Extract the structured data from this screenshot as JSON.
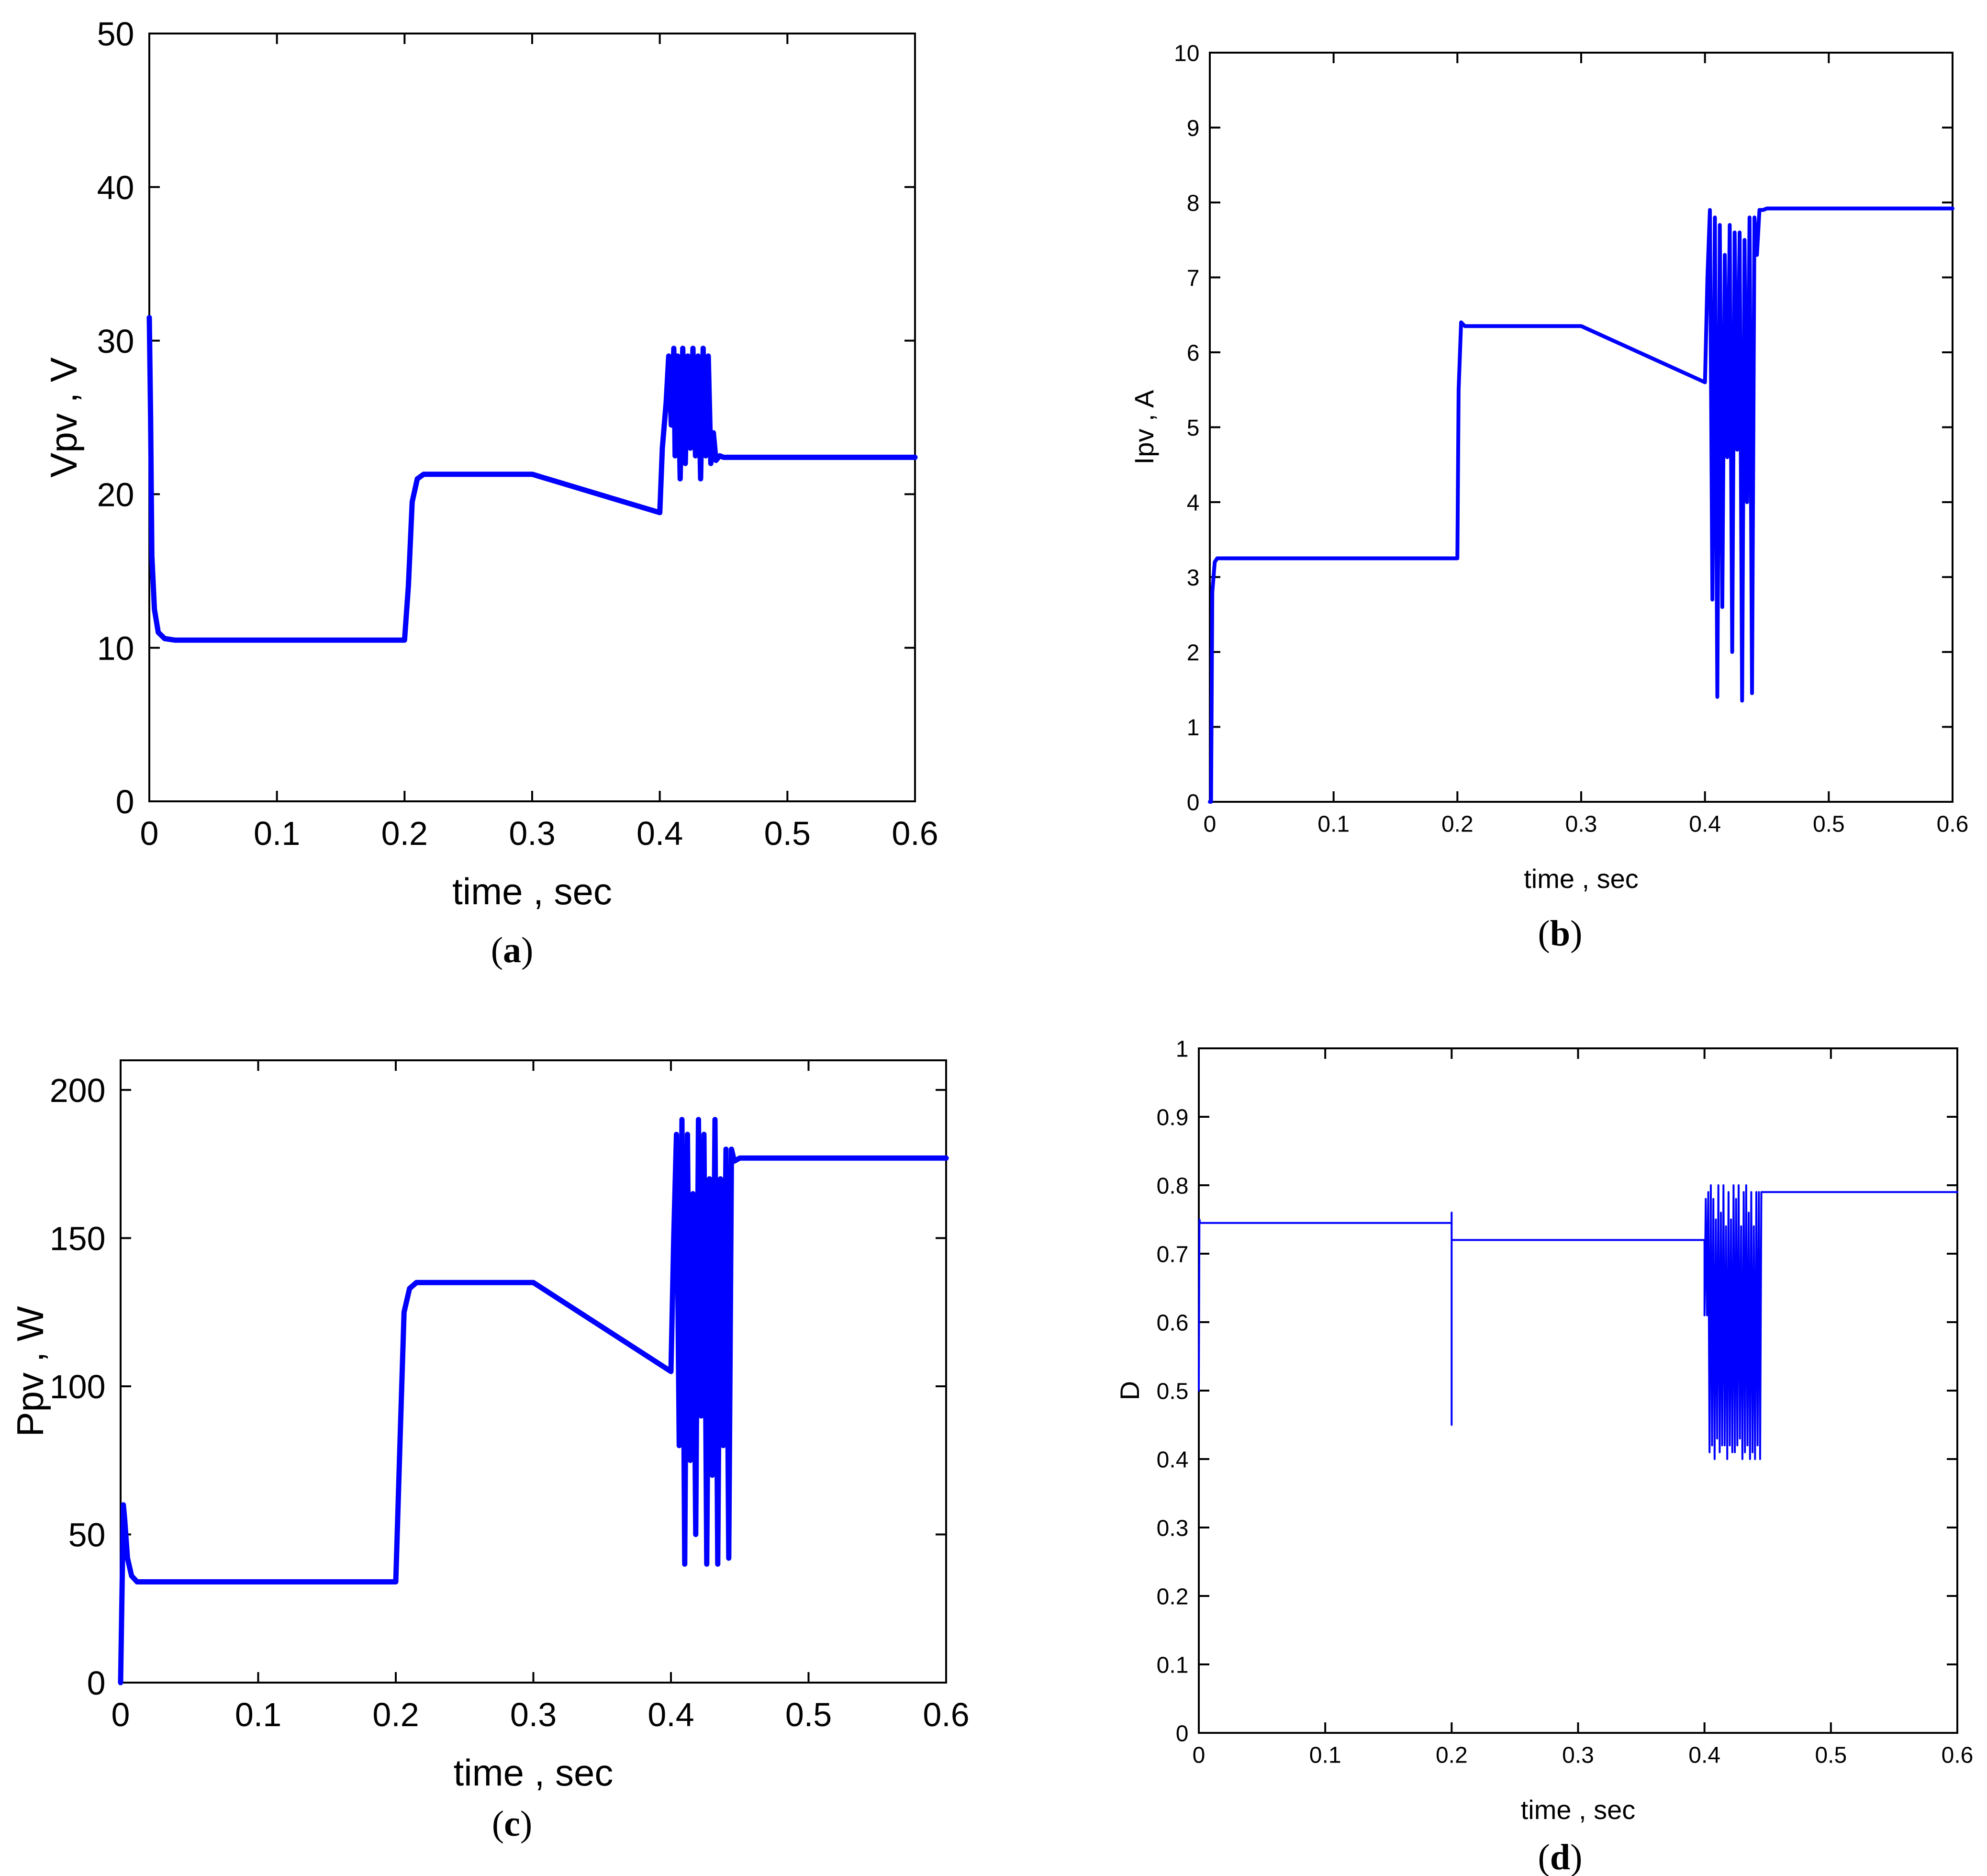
{
  "figure": {
    "line_color": "#0000ff",
    "captions": [
      {
        "open": "(",
        "letter": "a",
        "close": ")"
      },
      {
        "open": "(",
        "letter": "b",
        "close": ")"
      },
      {
        "open": "(",
        "letter": "c",
        "close": ")"
      },
      {
        "open": "(",
        "letter": "d",
        "close": ")"
      }
    ]
  },
  "chart_data": [
    {
      "type": "line",
      "xlabel": "time , sec",
      "ylabel": "Vpv , V",
      "xlim": [
        0,
        0.6
      ],
      "ylim": [
        0,
        50
      ],
      "xticks": [
        0,
        0.1,
        0.2,
        0.3,
        0.4,
        0.5,
        0.6
      ],
      "xtick_labels": [
        "0",
        "0.1",
        "0.2",
        "0.3",
        "0.4",
        "0.5",
        "0.6"
      ],
      "yticks": [
        0,
        10,
        20,
        30,
        40,
        50
      ],
      "ytick_labels": [
        "0",
        "10",
        "20",
        "30",
        "40",
        "50"
      ],
      "grid": false,
      "series": [
        {
          "color": "#0000ff",
          "x": [
            0,
            0.001,
            0.002,
            0.004,
            0.007,
            0.012,
            0.02,
            0.2,
            0.203,
            0.206,
            0.21,
            0.215,
            0.3,
            0.4,
            0.402,
            0.405,
            0.407,
            0.409,
            0.411,
            0.412,
            0.414,
            0.416,
            0.418,
            0.42,
            0.422,
            0.424,
            0.426,
            0.428,
            0.43,
            0.432,
            0.434,
            0.436,
            0.438,
            0.44,
            0.442,
            0.444,
            0.447,
            0.45,
            0.6
          ],
          "y": [
            31.5,
            25,
            16,
            12.5,
            11,
            10.6,
            10.5,
            10.5,
            14,
            19.5,
            21,
            21.3,
            21.3,
            18.8,
            23,
            26,
            29,
            24.5,
            29.5,
            22.5,
            29,
            21,
            29.5,
            22,
            29,
            23,
            29.5,
            22.5,
            29,
            21,
            29.5,
            22.5,
            29,
            22,
            24,
            22.2,
            22.5,
            22.4,
            22.4
          ]
        }
      ]
    },
    {
      "type": "line",
      "xlabel": "time , sec",
      "ylabel": "Ipv , A",
      "xlim": [
        0,
        0.6
      ],
      "ylim": [
        0,
        10
      ],
      "xticks": [
        0,
        0.1,
        0.2,
        0.3,
        0.4,
        0.5,
        0.6
      ],
      "xtick_labels": [
        "0",
        "0.1",
        "0.2",
        "0.3",
        "0.4",
        "0.5",
        "0.6"
      ],
      "yticks": [
        0,
        1,
        2,
        3,
        4,
        5,
        6,
        7,
        8,
        9,
        10
      ],
      "ytick_labels": [
        "0",
        "1",
        "2",
        "3",
        "4",
        "5",
        "6",
        "7",
        "8",
        "9",
        "10"
      ],
      "grid": false,
      "series": [
        {
          "color": "#0000ff",
          "x": [
            0,
            0.001,
            0.002,
            0.004,
            0.006,
            0.2,
            0.201,
            0.203,
            0.206,
            0.3,
            0.4,
            0.402,
            0.404,
            0.406,
            0.408,
            0.41,
            0.412,
            0.414,
            0.416,
            0.418,
            0.42,
            0.422,
            0.424,
            0.426,
            0.428,
            0.43,
            0.432,
            0.434,
            0.436,
            0.438,
            0.44,
            0.442,
            0.444,
            0.447,
            0.45,
            0.6
          ],
          "y": [
            0,
            0,
            2.8,
            3.2,
            3.25,
            3.25,
            5.5,
            6.4,
            6.35,
            6.35,
            5.6,
            7.0,
            7.9,
            2.7,
            7.8,
            1.4,
            7.7,
            2.6,
            7.3,
            4.6,
            7.7,
            2.0,
            7.6,
            4.7,
            7.6,
            1.35,
            7.5,
            4.0,
            7.8,
            1.45,
            7.8,
            7.3,
            7.9,
            7.9,
            7.92,
            7.92
          ]
        }
      ]
    },
    {
      "type": "line",
      "xlabel": "time , sec",
      "ylabel": "Ppv , W",
      "xlim": [
        0,
        0.6
      ],
      "ylim": [
        0,
        210
      ],
      "xticks": [
        0,
        0.1,
        0.2,
        0.3,
        0.4,
        0.5,
        0.6
      ],
      "xtick_labels": [
        "0",
        "0.1",
        "0.2",
        "0.3",
        "0.4",
        "0.5",
        "0.6"
      ],
      "yticks": [
        0,
        50,
        100,
        150,
        200
      ],
      "ytick_labels": [
        "0",
        "50",
        "100",
        "150",
        "200"
      ],
      "grid": false,
      "series": [
        {
          "color": "#0000ff",
          "x": [
            0,
            0.001,
            0.002,
            0.003,
            0.005,
            0.008,
            0.012,
            0.02,
            0.2,
            0.203,
            0.206,
            0.21,
            0.215,
            0.3,
            0.4,
            0.402,
            0.404,
            0.406,
            0.408,
            0.41,
            0.412,
            0.414,
            0.416,
            0.418,
            0.42,
            0.422,
            0.424,
            0.426,
            0.428,
            0.43,
            0.432,
            0.434,
            0.436,
            0.438,
            0.44,
            0.442,
            0.444,
            0.446,
            0.45,
            0.6
          ],
          "y": [
            0,
            30,
            60,
            55,
            42,
            36,
            34,
            34,
            34,
            80,
            125,
            133,
            135,
            135,
            105,
            150,
            185,
            80,
            190,
            40,
            185,
            75,
            165,
            50,
            190,
            90,
            185,
            40,
            170,
            70,
            190,
            40,
            170,
            80,
            180,
            42,
            180,
            176,
            177,
            177
          ]
        }
      ]
    },
    {
      "type": "line",
      "xlabel": "time , sec",
      "ylabel": "D",
      "xlim": [
        0,
        0.6
      ],
      "ylim": [
        0,
        1
      ],
      "xticks": [
        0,
        0.1,
        0.2,
        0.3,
        0.4,
        0.5,
        0.6
      ],
      "xtick_labels": [
        "0",
        "0.1",
        "0.2",
        "0.3",
        "0.4",
        "0.5",
        "0.6"
      ],
      "yticks": [
        0,
        0.1,
        0.2,
        0.3,
        0.4,
        0.5,
        0.6,
        0.7,
        0.8,
        0.9,
        1
      ],
      "ytick_labels": [
        "0",
        "0.1",
        "0.2",
        "0.3",
        "0.4",
        "0.5",
        "0.6",
        "0.7",
        "0.8",
        "0.9",
        "1"
      ],
      "grid": false,
      "series": [
        {
          "color": "#0000ff",
          "x": [
            0,
            0.0005,
            0.001,
            0.002,
            0.2,
            0.2,
            0.2,
            0.2,
            0.201,
            0.4,
            0.4,
            0.401,
            0.402,
            0.403,
            0.404,
            0.405,
            0.406,
            0.407,
            0.408,
            0.409,
            0.41,
            0.411,
            0.412,
            0.413,
            0.414,
            0.415,
            0.416,
            0.417,
            0.418,
            0.419,
            0.42,
            0.421,
            0.422,
            0.423,
            0.424,
            0.425,
            0.426,
            0.427,
            0.428,
            0.429,
            0.43,
            0.431,
            0.432,
            0.433,
            0.434,
            0.435,
            0.436,
            0.437,
            0.438,
            0.439,
            0.44,
            0.441,
            0.442,
            0.443,
            0.444,
            0.445,
            0.447,
            0.6
          ],
          "y": [
            0.5,
            0.75,
            0.745,
            0.745,
            0.745,
            0.76,
            0.45,
            0.72,
            0.72,
            0.72,
            0.61,
            0.78,
            0.61,
            0.79,
            0.41,
            0.8,
            0.42,
            0.78,
            0.4,
            0.75,
            0.43,
            0.8,
            0.41,
            0.76,
            0.42,
            0.8,
            0.42,
            0.74,
            0.4,
            0.79,
            0.42,
            0.75,
            0.41,
            0.8,
            0.41,
            0.78,
            0.42,
            0.8,
            0.43,
            0.74,
            0.4,
            0.79,
            0.41,
            0.8,
            0.42,
            0.76,
            0.4,
            0.79,
            0.41,
            0.74,
            0.4,
            0.79,
            0.42,
            0.79,
            0.4,
            0.79,
            0.79,
            0.79
          ]
        }
      ]
    }
  ]
}
